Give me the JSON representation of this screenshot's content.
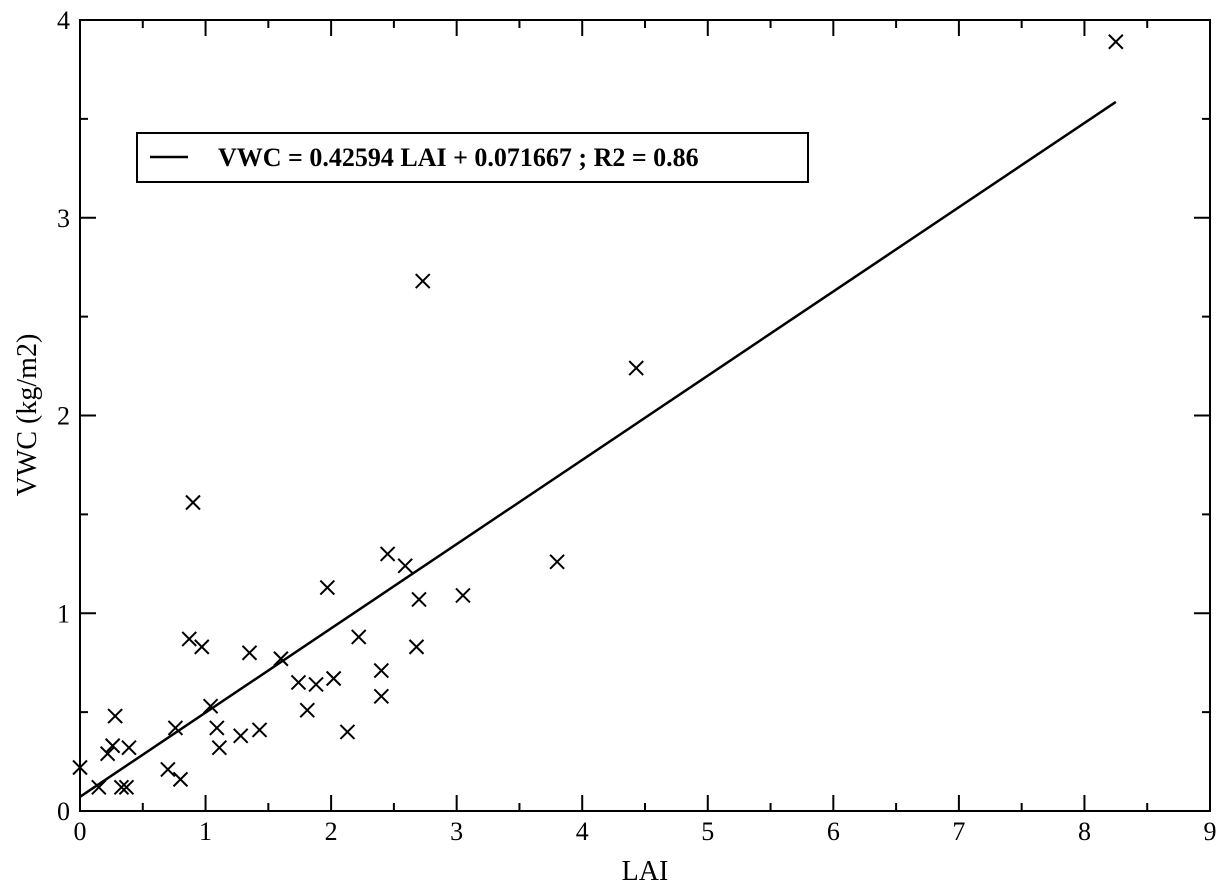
{
  "chart_data": {
    "type": "scatter",
    "xlabel": "LAI",
    "ylabel": "VWC (kg/m2)",
    "xlim": [
      0,
      9
    ],
    "ylim": [
      0,
      4
    ],
    "x_ticks": [
      "0",
      "1",
      "2",
      "3",
      "4",
      "5",
      "6",
      "7",
      "8",
      "9"
    ],
    "y_ticks": [
      "0",
      "1",
      "2",
      "3",
      "4"
    ],
    "grid": false,
    "legend": {
      "position": "top-left",
      "label": "VWC =  0.42594 LAI + 0.071667 ; R2 = 0.86"
    },
    "series": [
      {
        "type": "scatter",
        "marker": "x",
        "points": [
          [
            0.0,
            0.22
          ],
          [
            0.15,
            0.12
          ],
          [
            0.22,
            0.29
          ],
          [
            0.26,
            0.33
          ],
          [
            0.28,
            0.48
          ],
          [
            0.33,
            0.12
          ],
          [
            0.37,
            0.12
          ],
          [
            0.39,
            0.32
          ],
          [
            0.7,
            0.21
          ],
          [
            0.76,
            0.42
          ],
          [
            0.8,
            0.16
          ],
          [
            0.87,
            0.87
          ],
          [
            0.9,
            1.56
          ],
          [
            0.97,
            0.83
          ],
          [
            1.04,
            0.53
          ],
          [
            1.09,
            0.42
          ],
          [
            1.11,
            0.32
          ],
          [
            1.28,
            0.38
          ],
          [
            1.35,
            0.8
          ],
          [
            1.43,
            0.41
          ],
          [
            1.6,
            0.77
          ],
          [
            1.74,
            0.65
          ],
          [
            1.81,
            0.51
          ],
          [
            1.88,
            0.64
          ],
          [
            1.97,
            1.13
          ],
          [
            2.02,
            0.67
          ],
          [
            2.13,
            0.4
          ],
          [
            2.22,
            0.88
          ],
          [
            2.4,
            0.71
          ],
          [
            2.4,
            0.58
          ],
          [
            2.45,
            1.3
          ],
          [
            2.59,
            1.24
          ],
          [
            2.68,
            0.83
          ],
          [
            2.7,
            1.07
          ],
          [
            2.73,
            2.68
          ],
          [
            3.05,
            1.09
          ],
          [
            3.8,
            1.26
          ],
          [
            4.43,
            2.24
          ],
          [
            8.25,
            3.89
          ]
        ]
      },
      {
        "type": "line",
        "slope": 0.42594,
        "intercept": 0.071667,
        "x_range": [
          0,
          8.25
        ]
      }
    ]
  }
}
